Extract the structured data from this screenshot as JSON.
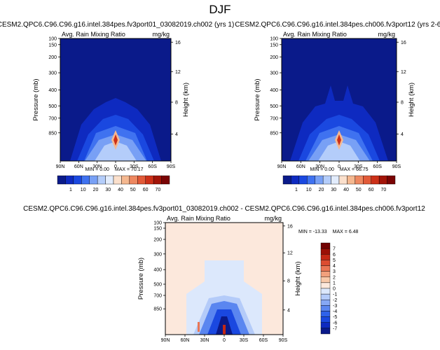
{
  "title": "DJF",
  "variable": "Avg. Rain Mixing Ratio",
  "units": "mg/kg",
  "chart_data": [
    {
      "type": "heatmap",
      "title": "CESM2.QPC6.C96.C96.g16.intel.384pes.fv3port01_03082019.ch002 (yrs 1)",
      "left_label": "Avg. Rain Mixing Ratio",
      "right_label": "mg/kg",
      "ylabel": "Pressure (mb)",
      "y2label": "Height (km)",
      "x_ticks": [
        "90N",
        "60N",
        "30N",
        "0",
        "30S",
        "60S",
        "90S"
      ],
      "y_ticks": [
        "100",
        "150",
        "200",
        "300",
        "400",
        "500",
        "700",
        "850"
      ],
      "y2_ticks": [
        "16",
        "12",
        "8",
        "4"
      ],
      "stats": {
        "min_text": "MIN =   0.00",
        "max_text": "MAX =  70.17"
      },
      "colorbar": [
        "1",
        "10",
        "20",
        "30",
        "40",
        "50",
        "60",
        "70"
      ]
    },
    {
      "type": "heatmap",
      "title": "CESM2.QPC6.C96.C96.g16.intel.384pes.ch006.fv3port12 (yrs 2-6)",
      "left_label": "Avg. Rain Mixing Ratio",
      "right_label": "mg/kg",
      "ylabel": "Pressure (mb)",
      "y2label": "Height (km)",
      "x_ticks": [
        "90N",
        "60N",
        "30N",
        "0",
        "30S",
        "60S",
        "90S"
      ],
      "y_ticks": [
        "100",
        "150",
        "200",
        "300",
        "400",
        "500",
        "700",
        "850"
      ],
      "y2_ticks": [
        "16",
        "12",
        "8",
        "4"
      ],
      "stats": {
        "min_text": "MIN =   0.00",
        "max_text": "MAX =  66.75"
      },
      "colorbar": [
        "1",
        "10",
        "20",
        "30",
        "40",
        "50",
        "60",
        "70"
      ]
    },
    {
      "type": "heatmap",
      "title": "CESM2.QPC6.C96.C96.g16.intel.384pes.fv3port01_03082019.ch002 - CESM2.QPC6.C96.C96.g16.intel.384pes.ch006.fv3port12",
      "left_label": "Avg. Rain Mixing Ratio",
      "right_label": "mg/kg",
      "ylabel": "Pressure (mb)",
      "y2label": "Height (km)",
      "x_ticks": [
        "90N",
        "60N",
        "30N",
        "0",
        "30S",
        "60S",
        "90S"
      ],
      "y_ticks": [
        "100",
        "150",
        "200",
        "300",
        "400",
        "500",
        "700",
        "850"
      ],
      "y2_ticks": [
        "16",
        "12",
        "8",
        "4"
      ],
      "stats": {
        "min_text": "MIN = -13.33",
        "max_text": "MAX =   6.48"
      },
      "colorbar": [
        "7",
        "6",
        "5",
        "4",
        "3",
        "2",
        "1",
        "0",
        "-1",
        "-2",
        "-3",
        "-4",
        "-5",
        "-6",
        "-7"
      ]
    }
  ],
  "colors": {
    "abs_scale": [
      "#0a1a8a",
      "#0e2ac0",
      "#1a48e0",
      "#3f72f0",
      "#78a0f5",
      "#b4cdfa",
      "#e2ecfc",
      "#fbe0cc",
      "#f5b890",
      "#ee8860",
      "#e25a38",
      "#cc3018",
      "#a21408",
      "#7a0404"
    ],
    "diff_scale": [
      "#0a1a8a",
      "#0e2ac0",
      "#1a48e0",
      "#2f62ea",
      "#5a86f0",
      "#86a8f5",
      "#b4cbf9",
      "#dce8fc",
      "#fce8dc",
      "#f8c8a8",
      "#f2a07c",
      "#ea7654",
      "#dc4c30",
      "#c42814",
      "#9a1006",
      "#720202"
    ]
  }
}
